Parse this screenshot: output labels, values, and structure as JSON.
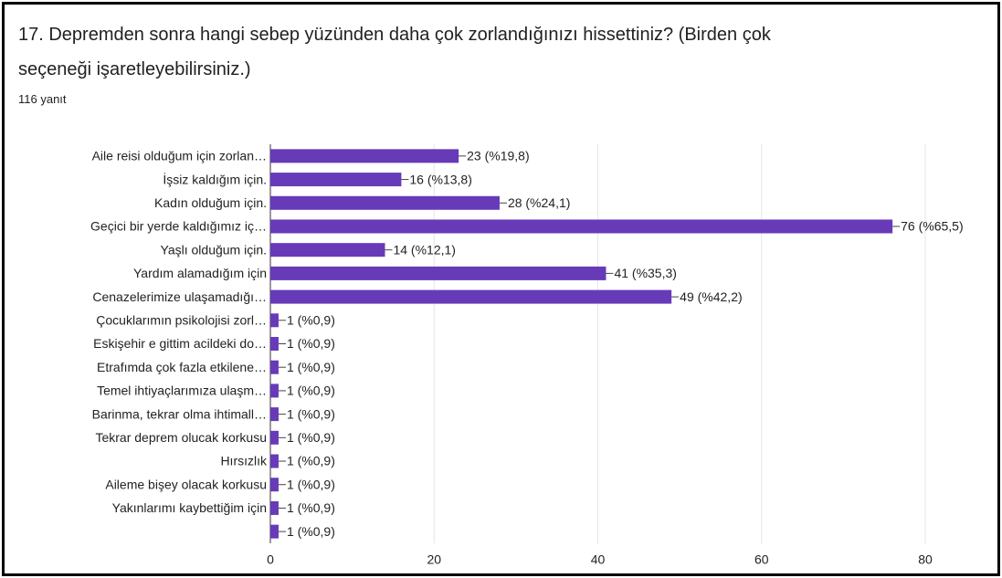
{
  "chart_data": {
    "type": "hbar",
    "title": "17. Depremden sonra hangi sebep yüzünden daha çok zorlandığınızı hissettiniz? (Birden çok seçeneği işaretleyebilirsiniz.)",
    "subtitle": "116 yanıt",
    "categories": [
      "Aile reisi olduğum için zorlan…",
      "İşsiz kaldığım için.",
      "Kadın olduğum için.",
      "Geçici bir yerde kaldığımız iç…",
      "Yaşlı olduğum için.",
      "Yardım alamadığım için",
      "Cenazelerimize ulaşamadığı…",
      "Çocuklarımın psikolojisi zorl…",
      "Eskişehir e gittim acildeki do…",
      "Etrafımda çok fazla etkilene…",
      "Temel ihtiyaçlarımıza ulaşm…",
      "Barinma, tekrar olma ihtimall…",
      "Tekrar deprem olucak korkusu",
      "Hırsızlık",
      "Aileme bişey olacak korkusu",
      "Yakınlarımı kaybettiğim için",
      null
    ],
    "values": [
      23,
      16,
      28,
      76,
      14,
      41,
      49,
      1,
      1,
      1,
      1,
      1,
      1,
      1,
      1,
      1,
      1
    ],
    "value_labels": [
      "23 (%19,8)",
      "16 (%13,8)",
      "28 (%24,1)",
      "76 (%65,5)",
      "14 (%12,1)",
      "41 (%35,3)",
      "49 (%42,2)",
      "1 (%0,9)",
      "1 (%0,9)",
      "1 (%0,9)",
      "1 (%0,9)",
      "1 (%0,9)",
      "1 (%0,9)",
      "1 (%0,9)",
      "1 (%0,9)",
      "1 (%0,9)",
      "1 (%0,9)"
    ],
    "color": "#673ab7",
    "xlim": [
      0,
      80
    ],
    "xticks": [
      0,
      20,
      40,
      60,
      80
    ],
    "grid": true
  }
}
